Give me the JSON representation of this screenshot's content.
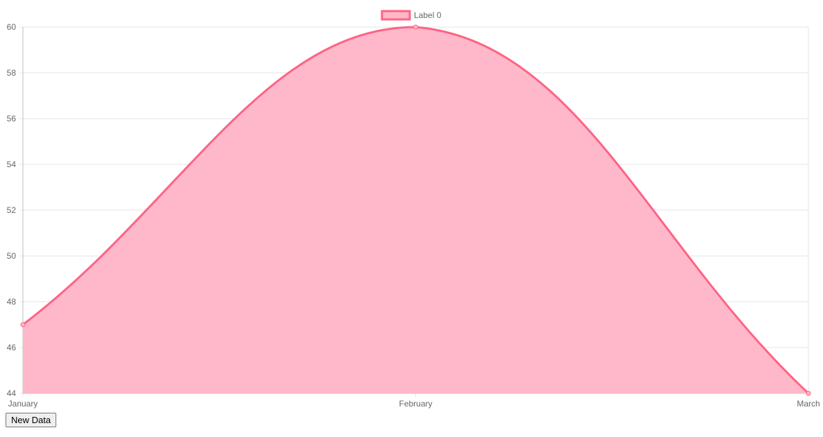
{
  "chart_data": {
    "type": "area",
    "categories": [
      "January",
      "February",
      "March"
    ],
    "series": [
      {
        "name": "Label 0",
        "values": [
          47,
          60,
          44
        ],
        "line_color": "#ff6384",
        "fill_color": "#ffb8c9"
      }
    ],
    "ylim": [
      44,
      60
    ],
    "yticks": [
      44,
      46,
      48,
      50,
      52,
      54,
      56,
      58,
      60
    ],
    "grid": true,
    "legend_position": "top-center",
    "title": "",
    "xlabel": "",
    "ylabel": ""
  },
  "controls": {
    "new_data_label": "New Data"
  }
}
